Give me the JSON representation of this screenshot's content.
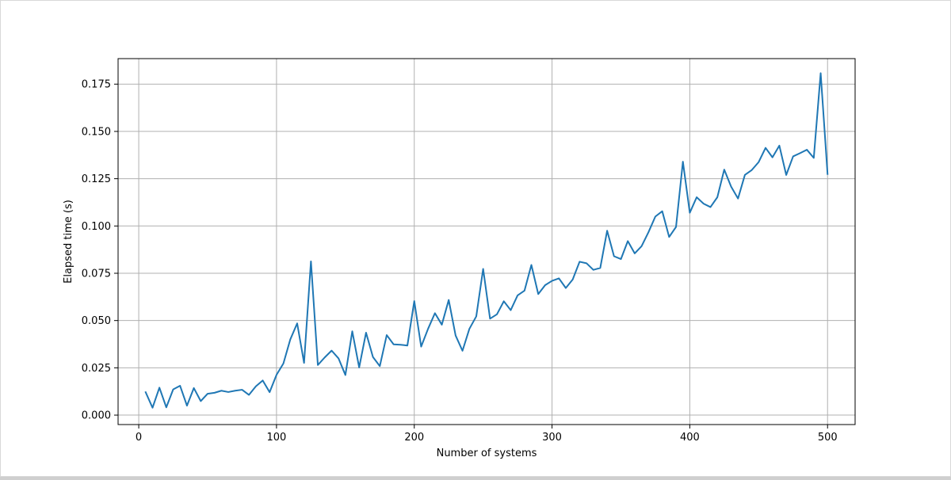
{
  "chart_data": {
    "type": "line",
    "title": "",
    "xlabel": "Number of systems",
    "ylabel": "Elapsed time (s)",
    "xlim": [
      -15,
      520
    ],
    "ylim": [
      -0.005,
      0.1885
    ],
    "xticks": [
      0,
      100,
      200,
      300,
      400,
      500
    ],
    "xtick_labels": [
      "0",
      "100",
      "200",
      "300",
      "400",
      "500"
    ],
    "yticks": [
      0.0,
      0.025,
      0.05,
      0.075,
      0.1,
      0.125,
      0.15,
      0.175
    ],
    "ytick_labels": [
      "0.000",
      "0.025",
      "0.050",
      "0.075",
      "0.100",
      "0.125",
      "0.150",
      "0.175"
    ],
    "grid": true,
    "line_color": "#1f77b4",
    "series": [
      {
        "x": [
          5,
          10,
          15,
          20,
          25,
          30,
          35,
          40,
          45,
          50,
          55,
          60,
          65,
          70,
          75,
          80,
          85,
          90,
          95,
          100,
          105,
          110,
          115,
          120,
          125,
          130,
          135,
          140,
          145,
          150,
          155,
          160,
          165,
          170,
          175,
          180,
          185,
          190,
          195,
          200,
          205,
          210,
          215,
          220,
          225,
          230,
          235,
          240,
          245,
          250,
          255,
          260,
          265,
          270,
          275,
          280,
          285,
          290,
          295,
          300,
          305,
          310,
          315,
          320,
          325,
          330,
          335,
          340,
          345,
          350,
          355,
          360,
          365,
          370,
          375,
          380,
          385,
          390,
          395,
          400,
          405,
          410,
          415,
          420,
          425,
          430,
          435,
          440,
          445,
          450,
          455,
          460,
          465,
          470,
          475,
          480,
          485,
          490,
          495,
          500
        ],
        "values": [
          0.0121,
          0.0039,
          0.0145,
          0.0041,
          0.0136,
          0.0155,
          0.005,
          0.0143,
          0.0074,
          0.0113,
          0.0118,
          0.0129,
          0.0122,
          0.0129,
          0.0134,
          0.0107,
          0.0152,
          0.0183,
          0.0121,
          0.0213,
          0.0273,
          0.04,
          0.0485,
          0.0276,
          0.0813,
          0.0265,
          0.0305,
          0.0341,
          0.03,
          0.0212,
          0.0443,
          0.0252,
          0.0436,
          0.0307,
          0.0259,
          0.0423,
          0.0374,
          0.0372,
          0.0368,
          0.0603,
          0.0362,
          0.0456,
          0.0539,
          0.0478,
          0.0609,
          0.0421,
          0.034,
          0.0456,
          0.0522,
          0.0773,
          0.051,
          0.0533,
          0.0602,
          0.0555,
          0.0633,
          0.0658,
          0.0794,
          0.064,
          0.0687,
          0.071,
          0.0723,
          0.0672,
          0.0717,
          0.0811,
          0.0803,
          0.0768,
          0.0778,
          0.0975,
          0.084,
          0.0825,
          0.092,
          0.0855,
          0.0893,
          0.0967,
          0.105,
          0.1078,
          0.0942,
          0.0995,
          0.134,
          0.107,
          0.1152,
          0.1118,
          0.11,
          0.1152,
          0.1298,
          0.1208,
          0.1145,
          0.127,
          0.1296,
          0.1338,
          0.1413,
          0.1363,
          0.1425,
          0.127,
          0.1368,
          0.1385,
          0.1403,
          0.136,
          0.1808,
          0.1275
        ]
      }
    ]
  }
}
